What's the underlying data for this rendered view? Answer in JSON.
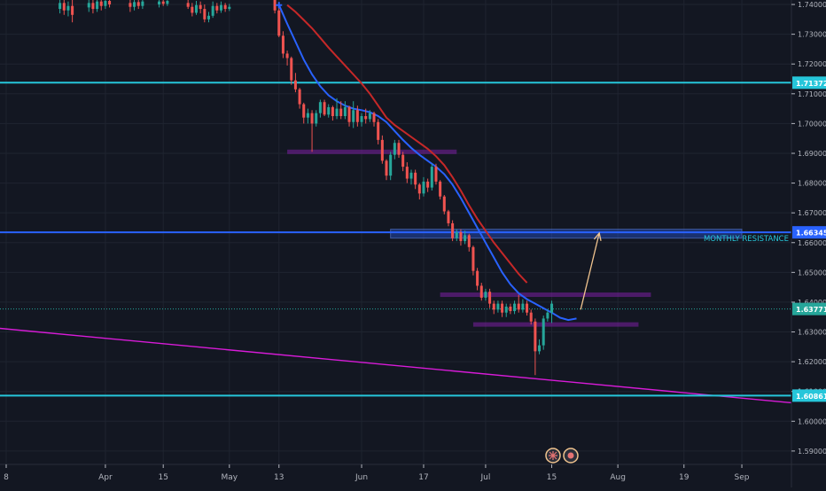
{
  "chart_data": {
    "type": "candlestick",
    "y_ticks": [
      "1.74000",
      "1.73000",
      "1.72000",
      "1.71000",
      "1.70000",
      "1.69000",
      "1.68000",
      "1.67000",
      "1.66000",
      "1.65000",
      "1.64000",
      "1.63000",
      "1.62000",
      "1.61000",
      "1.60000",
      "1.59000"
    ],
    "ylim": [
      1.5855,
      1.7415
    ],
    "x_ticks": [
      {
        "label": "8",
        "day": 0
      },
      {
        "label": "Apr",
        "day": 24
      },
      {
        "label": "15",
        "day": 38
      },
      {
        "label": "May",
        "day": 54
      },
      {
        "label": "13",
        "day": 66
      },
      {
        "label": "Jun",
        "day": 86
      },
      {
        "label": "17",
        "day": 101
      },
      {
        "label": "Jul",
        "day": 116
      },
      {
        "label": "15",
        "day": 132
      },
      {
        "label": "Aug",
        "day": 148
      },
      {
        "label": "19",
        "day": 164
      },
      {
        "label": "Sep",
        "day": 178
      }
    ],
    "x_domain": [
      -1.5,
      190
    ],
    "horizontal_levels": [
      {
        "name": "cyan-upper-level",
        "price": 1.71372,
        "label": "1.71372",
        "color": "#26c6da"
      },
      {
        "name": "monthly-resistance-level",
        "price": 1.66345,
        "label": "1.66345",
        "color": "#2962ff"
      },
      {
        "name": "current-price-level",
        "price": 1.63771,
        "label": "1.63771",
        "color": "#26a69a"
      },
      {
        "name": "cyan-lower-level",
        "price": 1.60861,
        "label": "1.60861",
        "color": "#26c6da"
      }
    ],
    "annotation": {
      "text": "MONTHLY RESISTANCE",
      "color": "#26c6da"
    },
    "resistance_zone": {
      "day_start": 93,
      "day_end": 178,
      "price_low": 1.6615,
      "price_high": 1.6645
    },
    "support_rects": [
      {
        "day_start": 68,
        "day_end": 109,
        "price": 1.6905
      },
      {
        "day_start": 105,
        "day_end": 156,
        "price": 1.6425
      },
      {
        "day_start": 113,
        "day_end": 153,
        "price": 1.6325
      }
    ],
    "trendline": {
      "p1": [
        -1.5,
        1.6312
      ],
      "p2": [
        190,
        1.6062
      ],
      "color": "#d81bd8"
    },
    "projection_arrow": {
      "from": [
        139,
        1.6375
      ],
      "to": [
        143.5,
        1.6632
      ],
      "color": "#f0c38e"
    },
    "ema_fast": {
      "color": "#2962ff",
      "points": [
        [
          66,
          1.7398
        ],
        [
          68,
          1.7335
        ],
        [
          70,
          1.7275
        ],
        [
          72,
          1.7215
        ],
        [
          74,
          1.7165
        ],
        [
          76,
          1.7125
        ],
        [
          78,
          1.7095
        ],
        [
          80,
          1.7075
        ],
        [
          82,
          1.706
        ],
        [
          84,
          1.705
        ],
        [
          86,
          1.7045
        ],
        [
          88,
          1.7038
        ],
        [
          90,
          1.7025
        ],
        [
          92,
          1.7005
        ],
        [
          94,
          1.6975
        ],
        [
          96,
          1.6945
        ],
        [
          98,
          1.6918
        ],
        [
          100,
          1.6895
        ],
        [
          102,
          1.6875
        ],
        [
          104,
          1.6855
        ],
        [
          106,
          1.683
        ],
        [
          108,
          1.6795
        ],
        [
          110,
          1.675
        ],
        [
          112,
          1.67
        ],
        [
          114,
          1.665
        ],
        [
          116,
          1.66
        ],
        [
          118,
          1.655
        ],
        [
          120,
          1.65
        ],
        [
          122,
          1.646
        ],
        [
          124,
          1.643
        ],
        [
          126,
          1.641
        ],
        [
          128,
          1.6395
        ],
        [
          130,
          1.638
        ],
        [
          132,
          1.6365
        ],
        [
          134,
          1.6348
        ],
        [
          136,
          1.634
        ],
        [
          138,
          1.6345
        ]
      ]
    },
    "ema_slow": {
      "color": "#c62828",
      "points": [
        [
          68,
          1.7398
        ],
        [
          70,
          1.7375
        ],
        [
          72,
          1.7348
        ],
        [
          74,
          1.732
        ],
        [
          76,
          1.7288
        ],
        [
          78,
          1.7255
        ],
        [
          80,
          1.7225
        ],
        [
          82,
          1.7195
        ],
        [
          84,
          1.7165
        ],
        [
          86,
          1.7135
        ],
        [
          88,
          1.71
        ],
        [
          90,
          1.706
        ],
        [
          92,
          1.702
        ],
        [
          94,
          1.6995
        ],
        [
          96,
          1.6975
        ],
        [
          98,
          1.6955
        ],
        [
          100,
          1.6935
        ],
        [
          102,
          1.6915
        ],
        [
          104,
          1.689
        ],
        [
          106,
          1.686
        ],
        [
          108,
          1.682
        ],
        [
          110,
          1.6775
        ],
        [
          112,
          1.6725
        ],
        [
          114,
          1.668
        ],
        [
          116,
          1.664
        ],
        [
          118,
          1.66
        ],
        [
          120,
          1.6565
        ],
        [
          122,
          1.653
        ],
        [
          124,
          1.6495
        ],
        [
          126,
          1.6465
        ]
      ]
    },
    "entry_marker": {
      "day": 66,
      "price": 1.7398,
      "color": "#2962ff"
    },
    "candles": [
      [
        13,
        1.7385,
        1.7405,
        1.737,
        1.742
      ],
      [
        14,
        1.7405,
        1.738,
        1.7365,
        1.742
      ],
      [
        15,
        1.738,
        1.7395,
        1.736,
        1.741
      ],
      [
        16,
        1.7395,
        1.7365,
        1.734,
        1.7415
      ],
      [
        20,
        1.739,
        1.7405,
        1.7375,
        1.742
      ],
      [
        21,
        1.7405,
        1.7385,
        1.737,
        1.7415
      ],
      [
        22,
        1.7385,
        1.741,
        1.7375,
        1.742
      ],
      [
        23,
        1.741,
        1.7395,
        1.738,
        1.742
      ],
      [
        24,
        1.7395,
        1.7412,
        1.7385,
        1.742
      ],
      [
        25,
        1.7412,
        1.74,
        1.739,
        1.742
      ],
      [
        30,
        1.7405,
        1.7392,
        1.7375,
        1.742
      ],
      [
        31,
        1.7392,
        1.7408,
        1.738,
        1.742
      ],
      [
        32,
        1.7408,
        1.7395,
        1.7385,
        1.742
      ],
      [
        33,
        1.7395,
        1.741,
        1.7385,
        1.742
      ],
      [
        37,
        1.74,
        1.741,
        1.739,
        1.742
      ],
      [
        38,
        1.741,
        1.7402,
        1.7395,
        1.742
      ],
      [
        39,
        1.7402,
        1.7412,
        1.7395,
        1.742
      ],
      [
        44,
        1.7405,
        1.7392,
        1.7385,
        1.742
      ],
      [
        45,
        1.7392,
        1.7372,
        1.736,
        1.7405
      ],
      [
        46,
        1.7372,
        1.7398,
        1.7365,
        1.7412
      ],
      [
        47,
        1.7398,
        1.7385,
        1.737,
        1.741
      ],
      [
        48,
        1.7385,
        1.735,
        1.734,
        1.74
      ],
      [
        49,
        1.735,
        1.7362,
        1.734,
        1.7375
      ],
      [
        50,
        1.7362,
        1.7395,
        1.7355,
        1.741
      ],
      [
        51,
        1.7395,
        1.738,
        1.737,
        1.7405
      ],
      [
        52,
        1.738,
        1.7398,
        1.7372,
        1.741
      ],
      [
        53,
        1.7398,
        1.7385,
        1.7375,
        1.7405
      ],
      [
        54,
        1.7385,
        1.7392,
        1.7378,
        1.7402
      ],
      [
        65,
        1.7415,
        1.738,
        1.737,
        1.742
      ],
      [
        66,
        1.738,
        1.7295,
        1.729,
        1.74
      ],
      [
        67,
        1.7295,
        1.7235,
        1.722,
        1.731
      ],
      [
        68,
        1.7235,
        1.722,
        1.7195,
        1.7245
      ],
      [
        69,
        1.722,
        1.7145,
        1.713,
        1.7225
      ],
      [
        70,
        1.7145,
        1.7115,
        1.7105,
        1.717
      ],
      [
        71,
        1.7115,
        1.7065,
        1.705,
        1.712
      ],
      [
        72,
        1.7065,
        1.702,
        1.7,
        1.707
      ],
      [
        73,
        1.702,
        1.7035,
        1.7,
        1.705
      ],
      [
        74,
        1.7035,
        1.7,
        1.6905,
        1.7045
      ],
      [
        75,
        1.7,
        1.7035,
        1.699,
        1.7045
      ],
      [
        76,
        1.7035,
        1.7072,
        1.702,
        1.708
      ],
      [
        77,
        1.7072,
        1.703,
        1.7025,
        1.708
      ],
      [
        78,
        1.703,
        1.7055,
        1.702,
        1.7065
      ],
      [
        79,
        1.7055,
        1.7025,
        1.701,
        1.706
      ],
      [
        80,
        1.7025,
        1.705,
        1.7015,
        1.7085
      ],
      [
        81,
        1.705,
        1.7025,
        1.7015,
        1.7075
      ],
      [
        82,
        1.7025,
        1.7055,
        1.7015,
        1.7075
      ],
      [
        83,
        1.7055,
        1.7005,
        1.699,
        1.706
      ],
      [
        84,
        1.7005,
        1.7045,
        1.6985,
        1.7075
      ],
      [
        85,
        1.7045,
        1.7005,
        1.699,
        1.706
      ],
      [
        86,
        1.7005,
        1.7025,
        1.699,
        1.7035
      ],
      [
        87,
        1.7025,
        1.7015,
        1.7,
        1.705
      ],
      [
        88,
        1.7015,
        1.7035,
        1.7005,
        1.7045
      ],
      [
        89,
        1.7035,
        1.7005,
        1.699,
        1.704
      ],
      [
        90,
        1.7005,
        1.6945,
        1.693,
        1.7015
      ],
      [
        91,
        1.6945,
        1.6875,
        1.6865,
        1.696
      ],
      [
        92,
        1.6875,
        1.6825,
        1.681,
        1.688
      ],
      [
        93,
        1.6825,
        1.6895,
        1.681,
        1.6905
      ],
      [
        94,
        1.6895,
        1.6935,
        1.688,
        1.6945
      ],
      [
        95,
        1.6935,
        1.6895,
        1.6885,
        1.6945
      ],
      [
        96,
        1.6895,
        1.6855,
        1.684,
        1.6905
      ],
      [
        97,
        1.6855,
        1.6815,
        1.68,
        1.687
      ],
      [
        98,
        1.6815,
        1.6835,
        1.6795,
        1.6845
      ],
      [
        99,
        1.6835,
        1.6795,
        1.678,
        1.6845
      ],
      [
        100,
        1.6795,
        1.6765,
        1.6745,
        1.68
      ],
      [
        101,
        1.6765,
        1.6805,
        1.6755,
        1.682
      ],
      [
        102,
        1.6805,
        1.6785,
        1.677,
        1.6815
      ],
      [
        103,
        1.6785,
        1.6855,
        1.6775,
        1.6865
      ],
      [
        104,
        1.6855,
        1.6805,
        1.6795,
        1.6865
      ],
      [
        105,
        1.6805,
        1.6755,
        1.6745,
        1.681
      ],
      [
        106,
        1.6755,
        1.6705,
        1.6695,
        1.676
      ],
      [
        107,
        1.6705,
        1.6665,
        1.6655,
        1.671
      ],
      [
        108,
        1.6665,
        1.6615,
        1.6605,
        1.6675
      ],
      [
        109,
        1.6615,
        1.6635,
        1.6605,
        1.6645
      ],
      [
        110,
        1.6635,
        1.6605,
        1.659,
        1.6645
      ],
      [
        111,
        1.6605,
        1.6625,
        1.6595,
        1.664
      ],
      [
        112,
        1.6625,
        1.6585,
        1.657,
        1.663
      ],
      [
        113,
        1.6585,
        1.6505,
        1.649,
        1.659
      ],
      [
        114,
        1.6505,
        1.6455,
        1.644,
        1.6515
      ],
      [
        115,
        1.6455,
        1.6415,
        1.6405,
        1.6465
      ],
      [
        116,
        1.6415,
        1.6435,
        1.6405,
        1.6445
      ],
      [
        117,
        1.6435,
        1.6395,
        1.638,
        1.6445
      ],
      [
        118,
        1.6395,
        1.6375,
        1.636,
        1.6405
      ],
      [
        119,
        1.6375,
        1.6395,
        1.6365,
        1.6405
      ],
      [
        120,
        1.6395,
        1.6365,
        1.635,
        1.6405
      ],
      [
        121,
        1.6365,
        1.6385,
        1.635,
        1.6395
      ],
      [
        122,
        1.6385,
        1.637,
        1.636,
        1.6395
      ],
      [
        123,
        1.637,
        1.6395,
        1.636,
        1.6405
      ],
      [
        124,
        1.6395,
        1.6375,
        1.6365,
        1.6425
      ],
      [
        125,
        1.6375,
        1.6395,
        1.6365,
        1.641
      ],
      [
        126,
        1.6395,
        1.6365,
        1.6355,
        1.6405
      ],
      [
        127,
        1.6365,
        1.6335,
        1.6325,
        1.6375
      ],
      [
        128,
        1.6335,
        1.6235,
        1.6155,
        1.6345
      ],
      [
        129,
        1.6235,
        1.6255,
        1.6225,
        1.6275
      ],
      [
        130,
        1.6255,
        1.6345,
        1.624,
        1.6355
      ],
      [
        131,
        1.6345,
        1.6365,
        1.6335,
        1.6375
      ],
      [
        132,
        1.6365,
        1.6395,
        1.633,
        1.6405
      ]
    ],
    "colors": {
      "up": "#26a69a",
      "down": "#ef5350",
      "background": "#131722",
      "grid": "#1f2430",
      "axis_text": "#b2b5be",
      "border": "#2a2e39"
    },
    "event_icons": [
      "uk-flag-icon",
      "economic-event-icon"
    ]
  }
}
